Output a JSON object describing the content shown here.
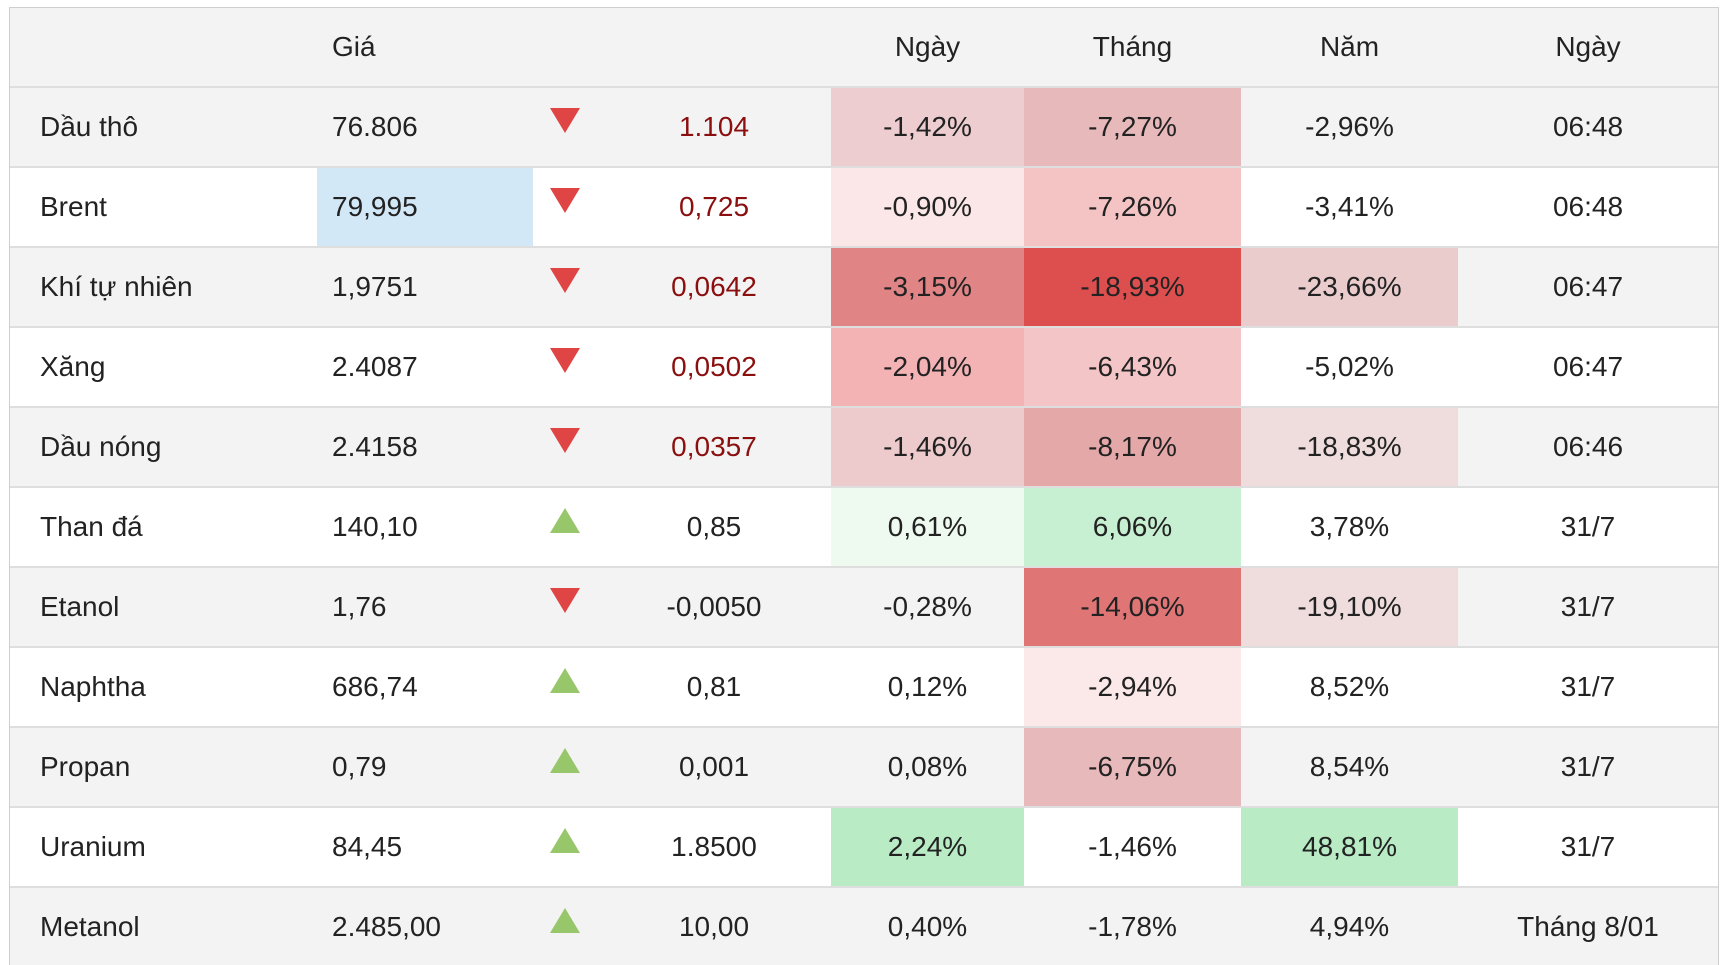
{
  "colors": {
    "header_bg": "#f3f3f3",
    "row_alt_bg": "#f3f3f3",
    "down_arrow": "#e04545",
    "up_arrow": "#97c66b",
    "negative_change_text": "#8b0f0f",
    "price_highlight": "#d3e8f6"
  },
  "table": {
    "headers": [
      "",
      "Giá",
      "",
      "",
      "Ngày",
      "Tháng",
      "Năm",
      "Ngày"
    ],
    "rows": [
      {
        "name": "Dầu thô",
        "price": "76.806",
        "direction": "down",
        "change": "1.104",
        "change_neg": true,
        "day": "-1,42%",
        "month": "-7,27%",
        "year": "-2,96%",
        "time": "06:48",
        "day_bg": "#edcdcf",
        "month_bg": "#e7b9ba",
        "year_bg": "",
        "price_bg": ""
      },
      {
        "name": "Brent",
        "price": "79,995",
        "direction": "down",
        "change": "0,725",
        "change_neg": true,
        "day": "-0,90%",
        "month": "-7,26%",
        "year": "-3,41%",
        "time": "06:48",
        "day_bg": "#fbe7e7",
        "month_bg": "#f4c4c5",
        "year_bg": "",
        "price_bg": "#d3e8f6"
      },
      {
        "name": "Khí tự nhiên",
        "price": "1,9751",
        "direction": "down",
        "change": "0,0642",
        "change_neg": true,
        "day": "-3,15%",
        "month": "-18,93%",
        "year": "-23,66%",
        "time": "06:47",
        "day_bg": "#e08486",
        "month_bg": "#dd4e4e",
        "year_bg": "#ebcccd",
        "price_bg": ""
      },
      {
        "name": "Xăng",
        "price": "2.4087",
        "direction": "down",
        "change": "0,0502",
        "change_neg": true,
        "day": "-2,04%",
        "month": "-6,43%",
        "year": "-5,02%",
        "time": "06:47",
        "day_bg": "#f3b3b4",
        "month_bg": "#f4c5c6",
        "year_bg": "",
        "price_bg": ""
      },
      {
        "name": "Dầu nóng",
        "price": "2.4158",
        "direction": "down",
        "change": "0,0357",
        "change_neg": true,
        "day": "-1,46%",
        "month": "-8,17%",
        "year": "-18,83%",
        "time": "06:46",
        "day_bg": "#edcacb",
        "month_bg": "#e5a8a9",
        "year_bg": "#efdcdc",
        "price_bg": ""
      },
      {
        "name": "Than đá",
        "price": "140,10",
        "direction": "up",
        "change": "0,85",
        "change_neg": false,
        "day": "0,61%",
        "month": "6,06%",
        "year": "3,78%",
        "time": "31/7",
        "day_bg": "#eef9ef",
        "month_bg": "#c7efd1",
        "year_bg": "",
        "price_bg": ""
      },
      {
        "name": "Etanol",
        "price": "1,76",
        "direction": "down",
        "change": "-0,0050",
        "change_neg": false,
        "day": "-0,28%",
        "month": "-14,06%",
        "year": "-19,10%",
        "time": "31/7",
        "day_bg": "",
        "month_bg": "#e07576",
        "year_bg": "#efdcdc",
        "price_bg": ""
      },
      {
        "name": "Naphtha",
        "price": "686,74",
        "direction": "up",
        "change": "0,81",
        "change_neg": false,
        "day": "0,12%",
        "month": "-2,94%",
        "year": "8,52%",
        "time": "31/7",
        "day_bg": "",
        "month_bg": "#fbe8e8",
        "year_bg": "",
        "price_bg": ""
      },
      {
        "name": "Propan",
        "price": "0,79",
        "direction": "up",
        "change": "0,001",
        "change_neg": false,
        "day": "0,08%",
        "month": "-6,75%",
        "year": "8,54%",
        "time": "31/7",
        "day_bg": "",
        "month_bg": "#e8b9ba",
        "year_bg": "",
        "price_bg": ""
      },
      {
        "name": "Uranium",
        "price": "84,45",
        "direction": "up",
        "change": "1.8500",
        "change_neg": false,
        "day": "2,24%",
        "month": "-1,46%",
        "year": "48,81%",
        "time": "31/7",
        "day_bg": "#b9ebc5",
        "month_bg": "",
        "year_bg": "#b9ebc5",
        "price_bg": ""
      },
      {
        "name": "Metanol",
        "price": "2.485,00",
        "direction": "up",
        "change": "10,00",
        "change_neg": false,
        "day": "0,40%",
        "month": "-1,78%",
        "year": "4,94%",
        "time": "Tháng 8/01",
        "day_bg": "",
        "month_bg": "",
        "year_bg": "",
        "price_bg": ""
      }
    ]
  }
}
